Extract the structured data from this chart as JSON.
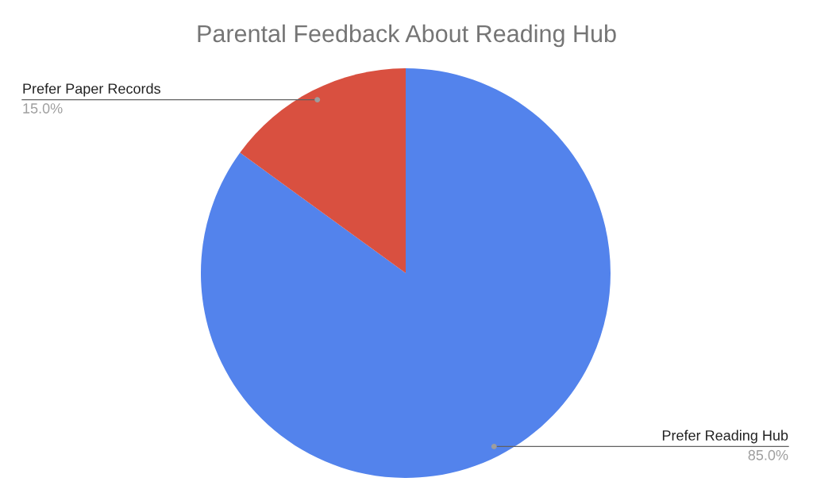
{
  "chart_data": {
    "type": "pie",
    "title": "Parental Feedback About Reading Hub",
    "categories": [
      "Prefer Reading Hub",
      "Prefer Paper Records"
    ],
    "values": [
      85,
      15
    ],
    "colors": [
      "#5383ec",
      "#d95040"
    ],
    "value_labels": [
      "85.0%",
      "15.0%"
    ],
    "legend": false
  }
}
